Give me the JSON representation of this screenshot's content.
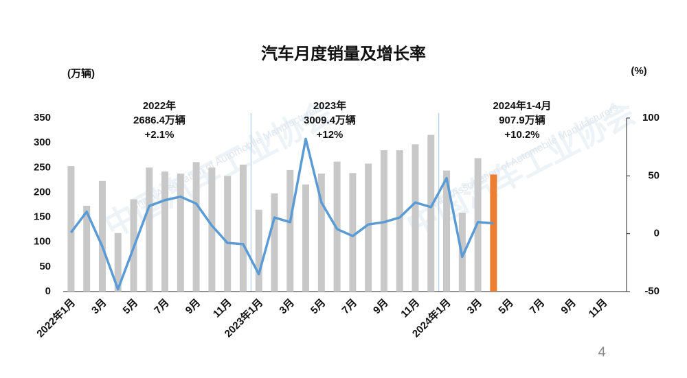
{
  "chart_data": {
    "type": "bar-line",
    "title": "汽车月度销量及增长率",
    "y_label": "(万辆)",
    "y2_label": "(%)",
    "page_number": "4",
    "watermark": [
      "中国汽车工业协会",
      "China Association of Automobile Manufacturers"
    ],
    "annotations": [
      [
        "2022年",
        "2686.4万辆",
        "+2.1%"
      ],
      [
        "2023年",
        "3009.4万辆",
        "+12%"
      ],
      [
        "2024年1-4月",
        "907.9万辆",
        "+10.2%"
      ]
    ],
    "categories": [
      "2022年1月",
      null,
      "3月",
      null,
      "5月",
      null,
      "7月",
      null,
      "9月",
      null,
      "11月",
      null,
      "2023年1月",
      null,
      "3月",
      null,
      "5月",
      null,
      "7月",
      null,
      "9月",
      null,
      "11月",
      null,
      "2024年1月",
      null,
      "3月",
      null,
      "5月",
      null,
      "7月",
      null,
      "9月",
      null,
      "11月",
      null
    ],
    "series": [
      {
        "type": "bar",
        "color": "#c8c8c8",
        "colors": [
          "#c8c8c8",
          "#c8c8c8",
          "#c8c8c8",
          "#c8c8c8",
          "#c8c8c8",
          "#c8c8c8",
          "#c8c8c8",
          "#c8c8c8",
          "#c8c8c8",
          "#c8c8c8",
          "#c8c8c8",
          "#c8c8c8",
          "#c8c8c8",
          "#c8c8c8",
          "#c8c8c8",
          "#c8c8c8",
          "#c8c8c8",
          "#c8c8c8",
          "#c8c8c8",
          "#c8c8c8",
          "#c8c8c8",
          "#c8c8c8",
          "#c8c8c8",
          "#c8c8c8",
          "#c8c8c8",
          "#c8c8c8",
          "#c8c8c8",
          "#ed7d31",
          null,
          null,
          null,
          null,
          null,
          null,
          null,
          null
        ],
        "values": [
          253,
          173,
          223,
          118,
          186,
          250,
          242,
          238,
          261,
          250,
          233,
          256,
          165,
          198,
          245,
          216,
          238,
          262,
          239,
          258,
          285,
          285,
          297,
          316,
          244,
          159,
          269,
          236,
          null,
          null,
          null,
          null,
          null,
          null,
          null,
          null
        ]
      },
      {
        "type": "line",
        "axis": "y2",
        "color": "#5b9bd5",
        "values": [
          1,
          19,
          -11,
          -48,
          -12,
          24,
          29,
          32,
          26,
          7,
          -8,
          -9,
          -35,
          14,
          10,
          82,
          27,
          4,
          -2,
          8,
          10,
          14,
          27,
          23,
          48,
          -20,
          10,
          9,
          null,
          null,
          null,
          null,
          null,
          null,
          null,
          null
        ]
      }
    ],
    "ylim": [
      0,
      350
    ],
    "yticks": [
      0,
      50,
      100,
      150,
      200,
      250,
      300,
      350
    ],
    "y2lim": [
      -50,
      100
    ],
    "y2ticks": [
      -50,
      0,
      50,
      100
    ]
  }
}
